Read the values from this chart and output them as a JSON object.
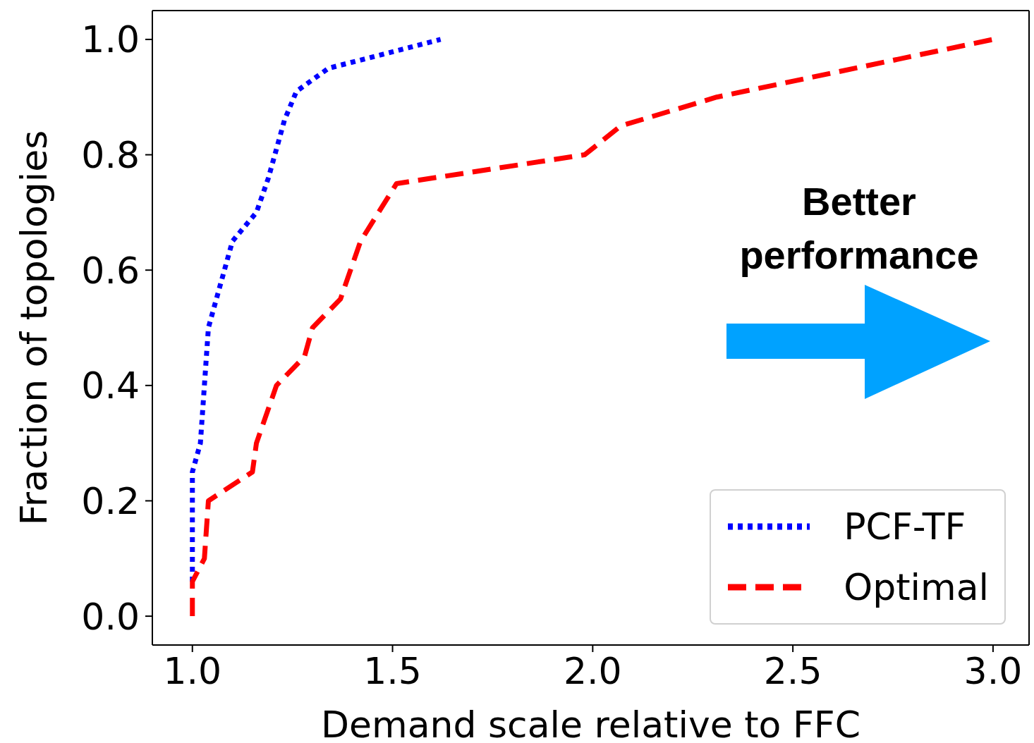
{
  "chart_data": {
    "type": "line",
    "xlabel": "Demand scale relative to FFC",
    "ylabel": "Fraction of topologies",
    "xlim": [
      0.9,
      3.09
    ],
    "ylim": [
      -0.05,
      1.05
    ],
    "xticks": [
      {
        "value": 1,
        "label": "1.0"
      },
      {
        "value": 1.5,
        "label": "1.5"
      },
      {
        "value": 2,
        "label": "2.0"
      },
      {
        "value": 2.5,
        "label": "2.5"
      },
      {
        "value": 3,
        "label": "3.0"
      }
    ],
    "yticks": [
      {
        "value": 0,
        "label": "0.0"
      },
      {
        "value": 0.2,
        "label": "0.2"
      },
      {
        "value": 0.4,
        "label": "0.4"
      },
      {
        "value": 0.6,
        "label": "0.6"
      },
      {
        "value": 0.8,
        "label": "0.8"
      },
      {
        "value": 1,
        "label": "1.0"
      }
    ],
    "series": [
      {
        "name": "PCF-TF",
        "color": "#0000ff",
        "line_style": "dotted",
        "x": [
          1.0,
          1.0,
          1.02,
          1.04,
          1.1,
          1.16,
          1.19,
          1.23,
          1.26,
          1.34,
          1.62
        ],
        "values": [
          0.06,
          0.25,
          0.3,
          0.5,
          0.65,
          0.7,
          0.76,
          0.86,
          0.91,
          0.95,
          1.0
        ]
      },
      {
        "name": "Optimal",
        "color": "#ff0000",
        "line_style": "dashed",
        "x": [
          1.0,
          1.0,
          1.03,
          1.04,
          1.15,
          1.16,
          1.21,
          1.28,
          1.3,
          1.37,
          1.42,
          1.51,
          1.98,
          2.07,
          2.31,
          3.0
        ],
        "values": [
          0.0,
          0.06,
          0.1,
          0.2,
          0.25,
          0.3,
          0.4,
          0.45,
          0.5,
          0.55,
          0.65,
          0.75,
          0.8,
          0.85,
          0.9,
          1.0
        ]
      }
    ],
    "legend": "bottom right",
    "annotations": [
      "Better performance"
    ]
  }
}
